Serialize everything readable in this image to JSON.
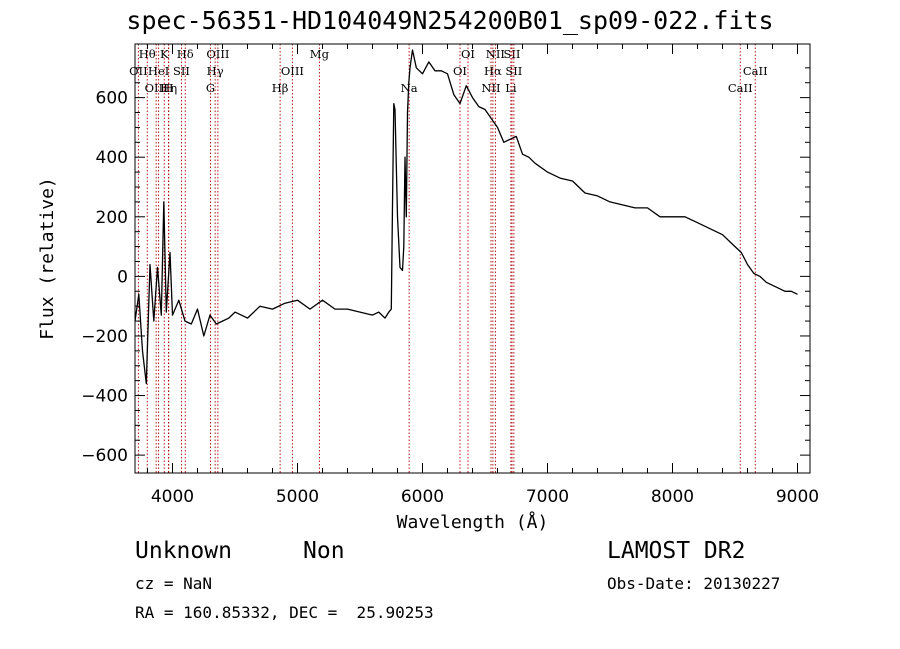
{
  "title": "spec-56351-HD104049N254200B01_sp09-022.fits",
  "info": {
    "class": "Unknown",
    "subclass": "Non",
    "survey": "LAMOST DR2",
    "cz": "cz = NaN",
    "obs_date": "Obs-Date: 20130227",
    "radec": "RA = 160.85332, DEC =  25.90253"
  },
  "chart_data": {
    "type": "line",
    "title": "spec-56351-HD104049N254200B01_sp09-022.fits",
    "xlabel": "Wavelength (Å)",
    "ylabel": "Flux (relative)",
    "xlim": [
      3700,
      9100
    ],
    "ylim": [
      -660,
      780
    ],
    "xticks": [
      4000,
      5000,
      6000,
      7000,
      8000,
      9000
    ],
    "yticks": [
      -600,
      -400,
      -200,
      0,
      200,
      400,
      600
    ],
    "grid": false,
    "color": "#000000",
    "line_marker_color": "#aa0000",
    "series": [
      {
        "x": [
          3700,
          3730,
          3760,
          3790,
          3820,
          3850,
          3880,
          3910,
          3930,
          3950,
          3980,
          4000,
          4050,
          4100,
          4150,
          4200,
          4250,
          4300,
          4350,
          4400,
          4450,
          4500,
          4600,
          4700,
          4800,
          4900,
          5000,
          5100,
          5200,
          5300,
          5400,
          5500,
          5600,
          5650,
          5700,
          5730,
          5750,
          5760,
          5770,
          5780,
          5800,
          5820,
          5840,
          5850,
          5860,
          5870,
          5880,
          5890,
          5900,
          5920,
          5950,
          6000,
          6050,
          6100,
          6150,
          6200,
          6250,
          6300,
          6350,
          6400,
          6450,
          6500,
          6550,
          6600,
          6650,
          6700,
          6750,
          6800,
          6850,
          6900,
          7000,
          7100,
          7200,
          7300,
          7400,
          7500,
          7600,
          7700,
          7800,
          7900,
          8000,
          8100,
          8200,
          8300,
          8400,
          8500,
          8550,
          8600,
          8650,
          8700,
          8750,
          8800,
          8850,
          8900,
          8950,
          9000
        ],
        "y": [
          -150,
          -60,
          -250,
          -360,
          40,
          -150,
          30,
          -130,
          250,
          -120,
          80,
          -130,
          -80,
          -150,
          -160,
          -110,
          -200,
          -130,
          -160,
          -150,
          -140,
          -120,
          -140,
          -100,
          -110,
          -90,
          -80,
          -110,
          -80,
          -110,
          -110,
          -120,
          -130,
          -120,
          -140,
          -120,
          -110,
          240,
          580,
          560,
          200,
          30,
          20,
          100,
          400,
          200,
          550,
          650,
          700,
          760,
          700,
          680,
          720,
          690,
          690,
          680,
          610,
          580,
          640,
          600,
          570,
          560,
          530,
          500,
          450,
          460,
          470,
          410,
          400,
          380,
          350,
          330,
          320,
          280,
          270,
          250,
          240,
          230,
          230,
          200,
          200,
          200,
          180,
          160,
          140,
          100,
          80,
          40,
          10,
          0,
          -20,
          -30,
          -40,
          -50,
          -50,
          -60
        ]
      }
    ],
    "spectral_lines": [
      {
        "label": "OII",
        "wavelength": 3727,
        "row": 2
      },
      {
        "label": "Hθ",
        "wavelength": 3798,
        "row": 1
      },
      {
        "label": "OIII",
        "wavelength": 3869,
        "row": 3
      },
      {
        "label": "HeI",
        "wavelength": 3889,
        "row": 2
      },
      {
        "label": "K",
        "wavelength": 3934,
        "row": 1
      },
      {
        "label": "Hη",
        "wavelength": 3970,
        "row": 3
      },
      {
        "label": "H",
        "wavelength": 3968,
        "row": 3
      },
      {
        "label": "SII",
        "wavelength": 4072,
        "row": 2
      },
      {
        "label": "Hδ",
        "wavelength": 4102,
        "row": 1
      },
      {
        "label": "G",
        "wavelength": 4304,
        "row": 3
      },
      {
        "label": "OIII",
        "wavelength": 4363,
        "row": 1
      },
      {
        "label": "Hγ",
        "wavelength": 4341,
        "row": 2
      },
      {
        "label": "Hβ",
        "wavelength": 4861,
        "row": 3
      },
      {
        "label": "OIII",
        "wavelength": 4959,
        "row": 2
      },
      {
        "label": "Mg",
        "wavelength": 5175,
        "row": 1
      },
      {
        "label": "Na",
        "wavelength": 5893,
        "row": 3
      },
      {
        "label": "OI",
        "wavelength": 6300,
        "row": 2
      },
      {
        "label": "OI",
        "wavelength": 6364,
        "row": 1
      },
      {
        "label": "NII",
        "wavelength": 6548,
        "row": 3
      },
      {
        "label": "Hα",
        "wavelength": 6563,
        "row": 2
      },
      {
        "label": "NII",
        "wavelength": 6583,
        "row": 1
      },
      {
        "label": "SII",
        "wavelength": 6716,
        "row": 1
      },
      {
        "label": "SII",
        "wavelength": 6731,
        "row": 2
      },
      {
        "label": "Li",
        "wavelength": 6707,
        "row": 3
      },
      {
        "label": "CaII",
        "wavelength": 8542,
        "row": 3
      },
      {
        "label": "CaII",
        "wavelength": 8662,
        "row": 2
      }
    ]
  }
}
